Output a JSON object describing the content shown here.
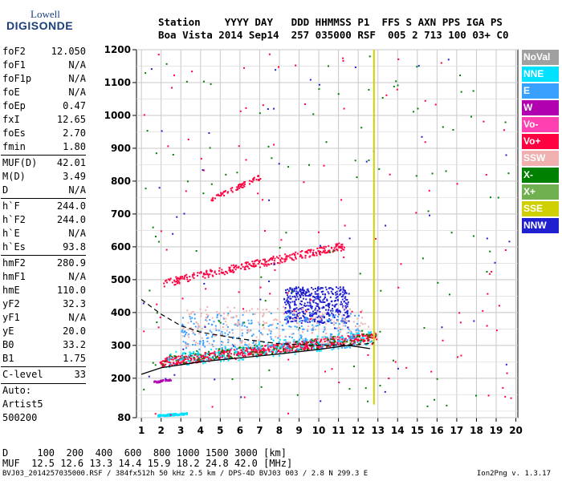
{
  "logo": {
    "line1": "Lowell",
    "line2": "DIGISONDE"
  },
  "header": {
    "line1": "Station    YYYY DAY   DDD HHMMSS P1  FFS S AXN PPS IGA PS",
    "line2": "Boa Vista 2014 Sep14  257 035000 RSF  005 2 713 100 03+ C0"
  },
  "params": [
    {
      "name": "foF2",
      "value": "12.050"
    },
    {
      "name": "foF1",
      "value": "N/A"
    },
    {
      "name": "foF1p",
      "value": "N/A"
    },
    {
      "name": "foE",
      "value": "N/A"
    },
    {
      "name": "foEp",
      "value": "0.47"
    },
    {
      "name": "fxI",
      "value": "12.65"
    },
    {
      "name": "foEs",
      "value": "2.70"
    },
    {
      "name": "fmin",
      "value": "1.80"
    },
    {
      "name": "MUF(D)",
      "value": "42.01"
    },
    {
      "name": "M(D)",
      "value": "3.49"
    },
    {
      "name": "D",
      "value": "N/A"
    },
    {
      "name": "h`F",
      "value": "244.0"
    },
    {
      "name": "h`F2",
      "value": "244.0"
    },
    {
      "name": "h`E",
      "value": "N/A"
    },
    {
      "name": "h`Es",
      "value": "93.8"
    },
    {
      "name": "hmF2",
      "value": "280.9"
    },
    {
      "name": "hmF1",
      "value": "N/A"
    },
    {
      "name": "hmE",
      "value": "110.0"
    },
    {
      "name": "yF2",
      "value": "32.3"
    },
    {
      "name": "yF1",
      "value": "N/A"
    },
    {
      "name": "yE",
      "value": "20.0"
    },
    {
      "name": "B0",
      "value": "33.2"
    },
    {
      "name": "B1",
      "value": "1.75"
    },
    {
      "name": "C-level",
      "value": "33"
    }
  ],
  "auto": {
    "label": "Auto:",
    "artist": "Artist5",
    "code": "500200"
  },
  "legend": [
    {
      "label": "NoVal",
      "color": "#a0a0a0"
    },
    {
      "label": "NNE",
      "color": "#00e0ff"
    },
    {
      "label": "E",
      "color": "#3aa0ff"
    },
    {
      "label": "W",
      "color": "#b000b0"
    },
    {
      "label": "Vo-",
      "color": "#ff40b0"
    },
    {
      "label": "Vo+",
      "color": "#ff0040"
    },
    {
      "label": "SSW",
      "color": "#f0b0b0"
    },
    {
      "label": "X-",
      "color": "#008000"
    },
    {
      "label": "X+",
      "color": "#70b050"
    },
    {
      "label": "SSE",
      "color": "#d0d000"
    },
    {
      "label": "NNW",
      "color": "#2020d0"
    }
  ],
  "footer": {
    "d_line": "D     100  200  400  600  800 1000 1500 3000 [km]",
    "muf_line": "MUF  12.5 12.6 13.3 14.4 15.9 18.2 24.8 42.0 [MHz]",
    "file_line": "BVJ03_2014257035000.RSF / 384fx512h 50 kHz 2.5 km / DPS-4D BVJ03 003 / 2.8 N 299.3 E",
    "version": "Ion2Png v. 1.3.17"
  },
  "chart_data": {
    "type": "scatter",
    "xlabel": "",
    "ylabel": "",
    "xlim": [
      0.75,
      20.1
    ],
    "ylim": [
      80,
      1200
    ],
    "x_ticks": [
      1,
      2,
      3,
      4,
      5,
      6,
      7,
      8,
      9,
      10,
      11,
      12,
      13,
      14,
      15,
      16,
      17,
      18,
      19,
      20
    ],
    "y_ticks": [
      80,
      200,
      300,
      400,
      500,
      600,
      700,
      800,
      900,
      1000,
      1100,
      1200
    ],
    "grid": true,
    "layers": [
      {
        "name": "F-trace",
        "color": "#ff0040",
        "x0": 1.9,
        "x1": 12.9,
        "y0": 250,
        "y1": 330,
        "count": 700,
        "spread": 14
      },
      {
        "name": "F-trace-green",
        "color": "#008000",
        "x0": 2.0,
        "x1": 12.6,
        "y0": 258,
        "y1": 325,
        "count": 140,
        "spread": 16
      },
      {
        "name": "F-trace-cyan",
        "color": "#00e0ff",
        "x0": 2.2,
        "x1": 12.8,
        "y0": 255,
        "y1": 328,
        "count": 200,
        "spread": 25
      },
      {
        "name": "2nd-hop",
        "color": "#ff0040",
        "x0": 2.1,
        "x1": 11.3,
        "y0": 492,
        "y1": 605,
        "count": 300,
        "spread": 12
      },
      {
        "name": "3rd-hop",
        "color": "#ff0040",
        "x0": 4.5,
        "x1": 7.0,
        "y0": 745,
        "y1": 815,
        "count": 70,
        "spread": 8
      },
      {
        "name": "spread-blue",
        "color": "#2020d0",
        "x0": 8.2,
        "x1": 11.5,
        "y0": 370,
        "y1": 480,
        "count": 450,
        "spread": 0
      },
      {
        "name": "spread-light",
        "color": "#3aa0ff",
        "x0": 3.0,
        "x1": 12.0,
        "y0": 290,
        "y1": 400,
        "count": 300,
        "spread": 0
      },
      {
        "name": "spread-pink",
        "color": "#f0b0b0",
        "x0": 3.0,
        "x1": 12.5,
        "y0": 300,
        "y1": 420,
        "count": 220,
        "spread": 0
      },
      {
        "name": "Es",
        "color": "#00e0ff",
        "x0": 1.8,
        "x1": 3.3,
        "y0": 88,
        "y1": 94,
        "count": 120,
        "spread": 3
      },
      {
        "name": "low-mixed",
        "color": "#b000b0",
        "x0": 1.6,
        "x1": 2.5,
        "y0": 190,
        "y1": 198,
        "count": 40,
        "spread": 3
      },
      {
        "name": "noise-x",
        "color": "#008000",
        "x0": 1.0,
        "x1": 19.8,
        "y0": 90,
        "y1": 1190,
        "count": 110,
        "spread": 0
      },
      {
        "name": "noise-r",
        "color": "#ff0040",
        "x0": 1.0,
        "x1": 19.8,
        "y0": 90,
        "y1": 1190,
        "count": 110,
        "spread": 0
      },
      {
        "name": "noise-b",
        "color": "#2020d0",
        "x0": 1.0,
        "x1": 19.8,
        "y0": 90,
        "y1": 1190,
        "count": 50,
        "spread": 0
      }
    ],
    "interference": {
      "color": "#d0d000",
      "x": 12.8,
      "y0": 120,
      "y1": 1200
    },
    "trace_solid": [
      [
        1.0,
        212
      ],
      [
        2.0,
        232
      ],
      [
        4.0,
        250
      ],
      [
        6.0,
        262
      ],
      [
        8.0,
        274
      ],
      [
        10.0,
        288
      ],
      [
        11.5,
        300
      ],
      [
        12.6,
        290
      ]
    ],
    "trace_dashed": [
      [
        1.0,
        440
      ],
      [
        2.0,
        395
      ],
      [
        3.0,
        360
      ],
      [
        4.0,
        340
      ],
      [
        6.0,
        320
      ],
      [
        8.0,
        305
      ],
      [
        10.0,
        300
      ],
      [
        12.0,
        302
      ],
      [
        12.8,
        308
      ]
    ]
  }
}
